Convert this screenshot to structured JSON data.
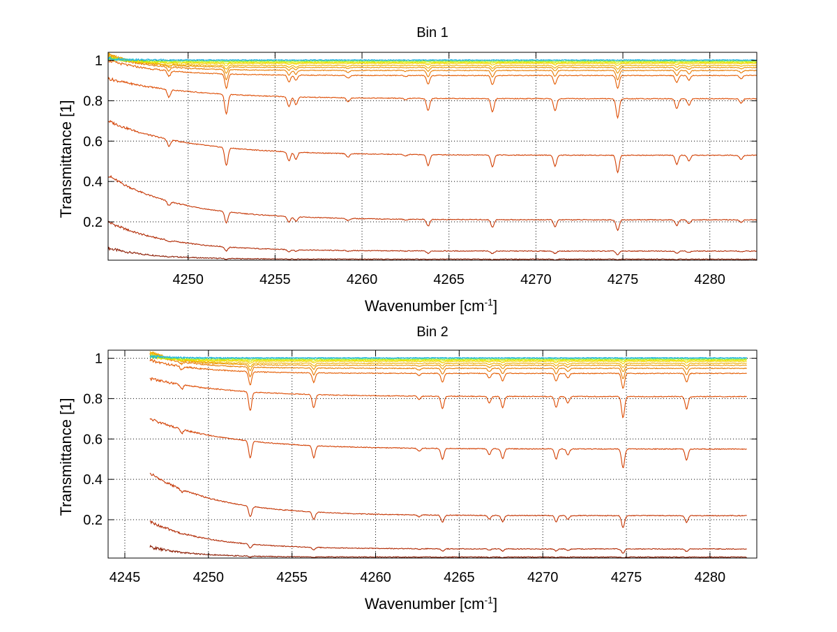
{
  "chart_data": [
    {
      "type": "line",
      "title": "Bin 1",
      "xlabel": "Wavenumber [cm",
      "xlabel_sup": "-1",
      "xlabel_end": "]",
      "ylabel": "Transmittance [1]",
      "xlim": [
        4245.4,
        4282.7
      ],
      "ylim": [
        0.01,
        1.04
      ],
      "xticks": [
        4250,
        4255,
        4260,
        4265,
        4270,
        4275,
        4280
      ],
      "xtick_labels": [
        "4250",
        "4255",
        "4260",
        "4265",
        "4270",
        "4275",
        "4280"
      ],
      "yticks": [
        0.2,
        0.4,
        0.6,
        0.8,
        1
      ],
      "ytick_labels": [
        "0.2",
        "0.4",
        "0.6",
        "0.8",
        "1"
      ],
      "grid": true,
      "x_range": [
        4245.4,
        4282.7
      ],
      "absorption_lines": [
        {
          "x": 4248.9,
          "depth": 0.35
        },
        {
          "x": 4252.2,
          "depth": 0.9
        },
        {
          "x": 4255.8,
          "depth": 0.45
        },
        {
          "x": 4256.2,
          "depth": 0.35
        },
        {
          "x": 4259.2,
          "depth": 0.18
        },
        {
          "x": 4262.5,
          "depth": 0.08
        },
        {
          "x": 4263.8,
          "depth": 0.55
        },
        {
          "x": 4267.5,
          "depth": 0.6
        },
        {
          "x": 4271.1,
          "depth": 0.55
        },
        {
          "x": 4274.7,
          "depth": 0.85
        },
        {
          "x": 4278.1,
          "depth": 0.45
        },
        {
          "x": 4278.8,
          "depth": 0.3
        },
        {
          "x": 4281.8,
          "depth": 0.2
        }
      ],
      "series": [
        {
          "color": "#8b1a00",
          "start": 0.07,
          "plateau": 0.015,
          "decay": 2.5,
          "abs": 0.02
        },
        {
          "color": "#b02700",
          "start": 0.2,
          "plateau": 0.055,
          "decay": 3.5,
          "abs": 0.1
        },
        {
          "color": "#c43300",
          "start": 0.43,
          "plateau": 0.21,
          "decay": 4.0,
          "abs": 0.28
        },
        {
          "color": "#d23e00",
          "start": 0.7,
          "plateau": 0.53,
          "decay": 4.5,
          "abs": 0.45
        },
        {
          "color": "#dd4a00",
          "start": 0.91,
          "plateau": 0.81,
          "decay": 4.5,
          "abs": 0.5
        },
        {
          "color": "#e45c00",
          "start": 1.0,
          "plateau": 0.925,
          "decay": 3.0,
          "abs": 0.35
        },
        {
          "color": "#e87a00",
          "start": 1.02,
          "plateau": 0.95,
          "decay": 2.5,
          "abs": 0.25
        },
        {
          "color": "#eb9400",
          "start": 1.03,
          "plateau": 0.965,
          "decay": 2.0,
          "abs": 0.15
        },
        {
          "color": "#f0b000",
          "start": 1.03,
          "plateau": 0.975,
          "decay": 1.5,
          "abs": 0.1
        },
        {
          "color": "#f3cf00",
          "start": 1.02,
          "plateau": 0.985,
          "decay": 1.2,
          "abs": 0.06
        },
        {
          "color": "#e8ea00",
          "start": 1.01,
          "plateau": 0.99,
          "decay": 1.0,
          "abs": 0.03
        },
        {
          "color": "#9ee61a",
          "start": 1.01,
          "plateau": 0.995,
          "decay": 1.0,
          "abs": 0.015
        },
        {
          "color": "#3fd9c0",
          "start": 1.01,
          "plateau": 1.0,
          "decay": 1.0,
          "abs": 0.005
        },
        {
          "color": "#1fb0e0",
          "start": 1.01,
          "plateau": 1.002,
          "decay": 1.0,
          "abs": 0.003
        }
      ]
    },
    {
      "type": "line",
      "title": "Bin 2",
      "xlabel": "Wavenumber [cm",
      "xlabel_sup": "-1",
      "xlabel_end": "]",
      "ylabel": "Transmittance [1]",
      "xlim": [
        4244.0,
        4282.8
      ],
      "ylim": [
        0.01,
        1.04
      ],
      "xticks": [
        4245,
        4250,
        4255,
        4260,
        4265,
        4270,
        4275,
        4280
      ],
      "xtick_labels": [
        "4245",
        "4250",
        "4255",
        "4260",
        "4265",
        "4270",
        "4275",
        "4280"
      ],
      "yticks": [
        0.2,
        0.4,
        0.6,
        0.8,
        1
      ],
      "ytick_labels": [
        "0.2",
        "0.4",
        "0.6",
        "0.8",
        "1"
      ],
      "grid": true,
      "x_range": [
        4246.5,
        4282.2
      ],
      "absorption_lines": [
        {
          "x": 4248.4,
          "depth": 0.2
        },
        {
          "x": 4252.5,
          "depth": 0.85
        },
        {
          "x": 4256.3,
          "depth": 0.6
        },
        {
          "x": 4262.6,
          "depth": 0.15
        },
        {
          "x": 4264.0,
          "depth": 0.55
        },
        {
          "x": 4266.8,
          "depth": 0.3
        },
        {
          "x": 4267.6,
          "depth": 0.5
        },
        {
          "x": 4270.8,
          "depth": 0.5
        },
        {
          "x": 4271.5,
          "depth": 0.3
        },
        {
          "x": 4274.8,
          "depth": 0.95
        },
        {
          "x": 4278.6,
          "depth": 0.55
        }
      ],
      "series": [
        {
          "color": "#8b1a00",
          "start": 0.065,
          "plateau": 0.015,
          "decay": 2.5,
          "abs": 0.02
        },
        {
          "color": "#b02700",
          "start": 0.19,
          "plateau": 0.055,
          "decay": 3.5,
          "abs": 0.1
        },
        {
          "color": "#c43300",
          "start": 0.43,
          "plateau": 0.22,
          "decay": 4.0,
          "abs": 0.28
        },
        {
          "color": "#d23e00",
          "start": 0.7,
          "plateau": 0.55,
          "decay": 4.5,
          "abs": 0.45
        },
        {
          "color": "#dd4a00",
          "start": 0.9,
          "plateau": 0.81,
          "decay": 4.5,
          "abs": 0.5
        },
        {
          "color": "#e45c00",
          "start": 0.99,
          "plateau": 0.925,
          "decay": 3.0,
          "abs": 0.35
        },
        {
          "color": "#e87a00",
          "start": 1.02,
          "plateau": 0.95,
          "decay": 2.5,
          "abs": 0.25
        },
        {
          "color": "#eb9400",
          "start": 1.03,
          "plateau": 0.965,
          "decay": 2.0,
          "abs": 0.15
        },
        {
          "color": "#f0b000",
          "start": 1.03,
          "plateau": 0.975,
          "decay": 1.5,
          "abs": 0.1
        },
        {
          "color": "#f3cf00",
          "start": 1.02,
          "plateau": 0.985,
          "decay": 1.2,
          "abs": 0.06
        },
        {
          "color": "#e8ea00",
          "start": 1.01,
          "plateau": 0.99,
          "decay": 1.0,
          "abs": 0.03
        },
        {
          "color": "#9ee61a",
          "start": 1.01,
          "plateau": 0.995,
          "decay": 1.0,
          "abs": 0.015
        },
        {
          "color": "#3fd9c0",
          "start": 1.01,
          "plateau": 1.0,
          "decay": 1.0,
          "abs": 0.005
        },
        {
          "color": "#1fb0e0",
          "start": 1.01,
          "plateau": 1.002,
          "decay": 1.0,
          "abs": 0.003
        }
      ]
    }
  ]
}
